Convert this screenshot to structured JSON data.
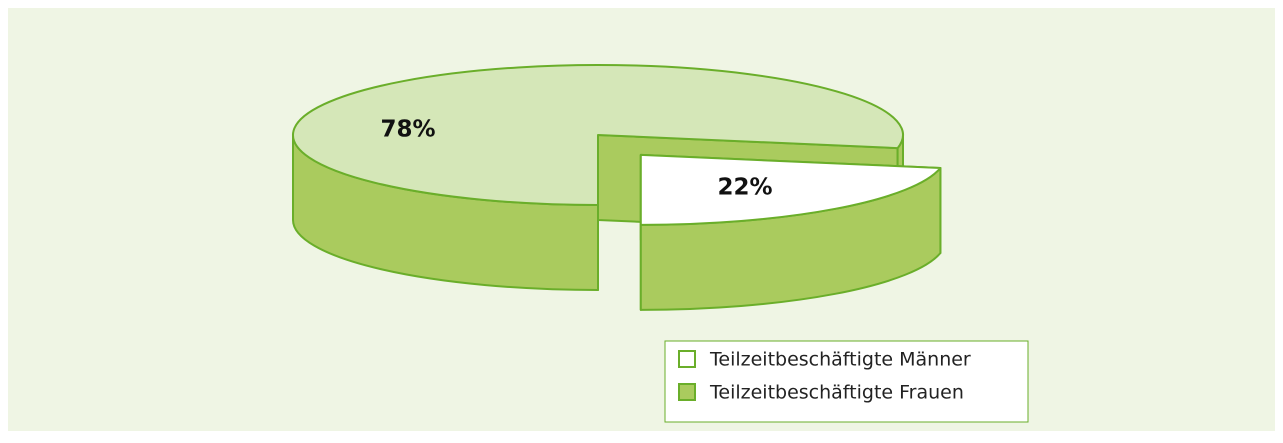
{
  "chart_data": {
    "type": "pie3d",
    "categories": [
      "Teilzeitbeschäftigte Männer",
      "Teilzeitbeschäftigte Frauen"
    ],
    "values": [
      22,
      78
    ],
    "value_labels": [
      "22%",
      "78%"
    ],
    "top_colors": [
      "#ffffff",
      "#d5e7b8"
    ],
    "side_color": "#aacb5e",
    "legend_colors": [
      "#ffffff",
      "#aacb5e"
    ],
    "edge_color": "#6aae2a"
  }
}
